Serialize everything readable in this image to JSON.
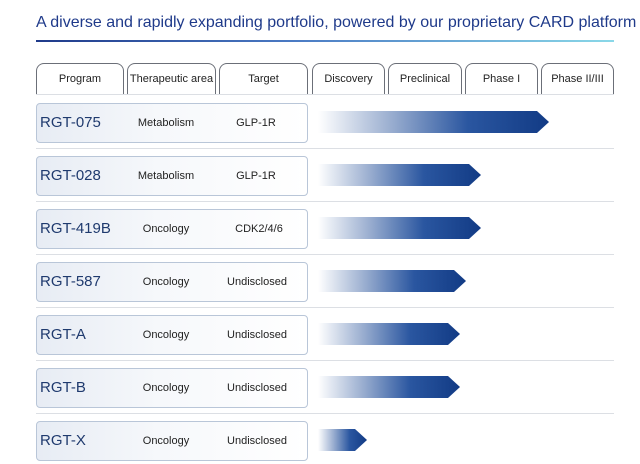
{
  "title": "A diverse and rapidly expanding portfolio, powered by our proprietary CARD platform",
  "columns": [
    "Program",
    "Therapeutic area",
    "Target",
    "Discovery",
    "Preclinical",
    "Phase I",
    "Phase II/III"
  ],
  "rows": [
    {
      "program": "RGT-075",
      "area": "Metabolism",
      "target": "GLP-1R",
      "stage": "Phase I"
    },
    {
      "program": "RGT-028",
      "area": "Metabolism",
      "target": "GLP-1R",
      "stage": "Preclinical"
    },
    {
      "program": "RGT-419B",
      "area": "Oncology",
      "target": "CDK2/4/6",
      "stage": "Preclinical"
    },
    {
      "program": "RGT-587",
      "area": "Oncology",
      "target": "Undisclosed",
      "stage": "Preclinical"
    },
    {
      "program": "RGT-A",
      "area": "Oncology",
      "target": "Undisclosed",
      "stage": "Preclinical"
    },
    {
      "program": "RGT-B",
      "area": "Oncology",
      "target": "Undisclosed",
      "stage": "Preclinical"
    },
    {
      "program": "RGT-X",
      "area": "Oncology",
      "target": "Undisclosed",
      "stage": "Discovery"
    }
  ],
  "colors": {
    "accent": "#1f3a8a",
    "arrow_dark": "#123b85",
    "rule_end": "#8ad8e8"
  }
}
